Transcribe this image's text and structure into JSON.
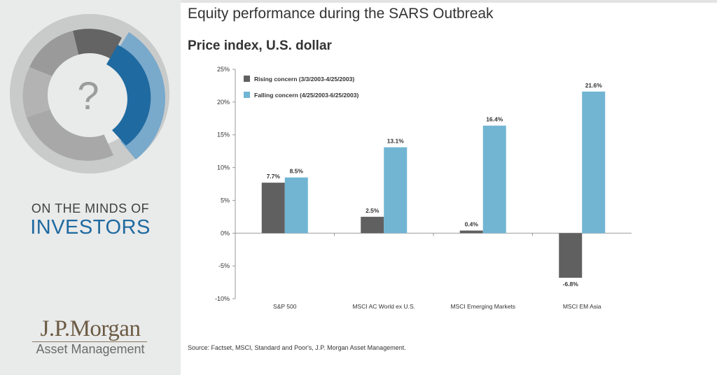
{
  "sidebar": {
    "donut_glyph": "?",
    "tagline_small": "ON THE MINDS OF",
    "tagline_big": "INVESTORS",
    "brand_name": "J.P.Morgan",
    "brand_sub": "Asset Management"
  },
  "colors": {
    "rising": "#606060",
    "falling": "#71b5d3",
    "accent": "#1f6aa0",
    "brand": "#6b5a43"
  },
  "chart_data": {
    "type": "bar",
    "title": "Equity performance during the SARS Outbreak",
    "subtitle": "Price index, U.S. dollar",
    "xlabel": "",
    "ylabel": "",
    "ylim": [
      -10,
      25
    ],
    "yticks": [
      25,
      20,
      15,
      10,
      5,
      0,
      -5,
      -10
    ],
    "ytick_labels": [
      "25%",
      "20%",
      "15%",
      "10%",
      "5%",
      "0%",
      "-5%",
      "-10%"
    ],
    "grid": false,
    "legend_position": "top-left",
    "categories": [
      "S&P 500",
      "MSCI AC World ex U.S.",
      "MSCI Emerging Markets",
      "MSCI EM Asia"
    ],
    "series": [
      {
        "name": "Rising concern (3/3/2003-4/25/2003)",
        "color": "#606060",
        "values": [
          7.7,
          2.5,
          0.4,
          -6.8
        ],
        "labels": [
          "7.7%",
          "2.5%",
          "0.4%",
          "-6.8%"
        ]
      },
      {
        "name": "Falling concern (4/25/2003-6/25/2003)",
        "color": "#71b5d3",
        "values": [
          8.5,
          13.1,
          16.4,
          21.6
        ],
        "labels": [
          "8.5%",
          "13.1%",
          "16.4%",
          "21.6%"
        ]
      }
    ],
    "source": "Source: Factset, MSCI, Standard and Poor's, J.P. Morgan Asset Management."
  }
}
